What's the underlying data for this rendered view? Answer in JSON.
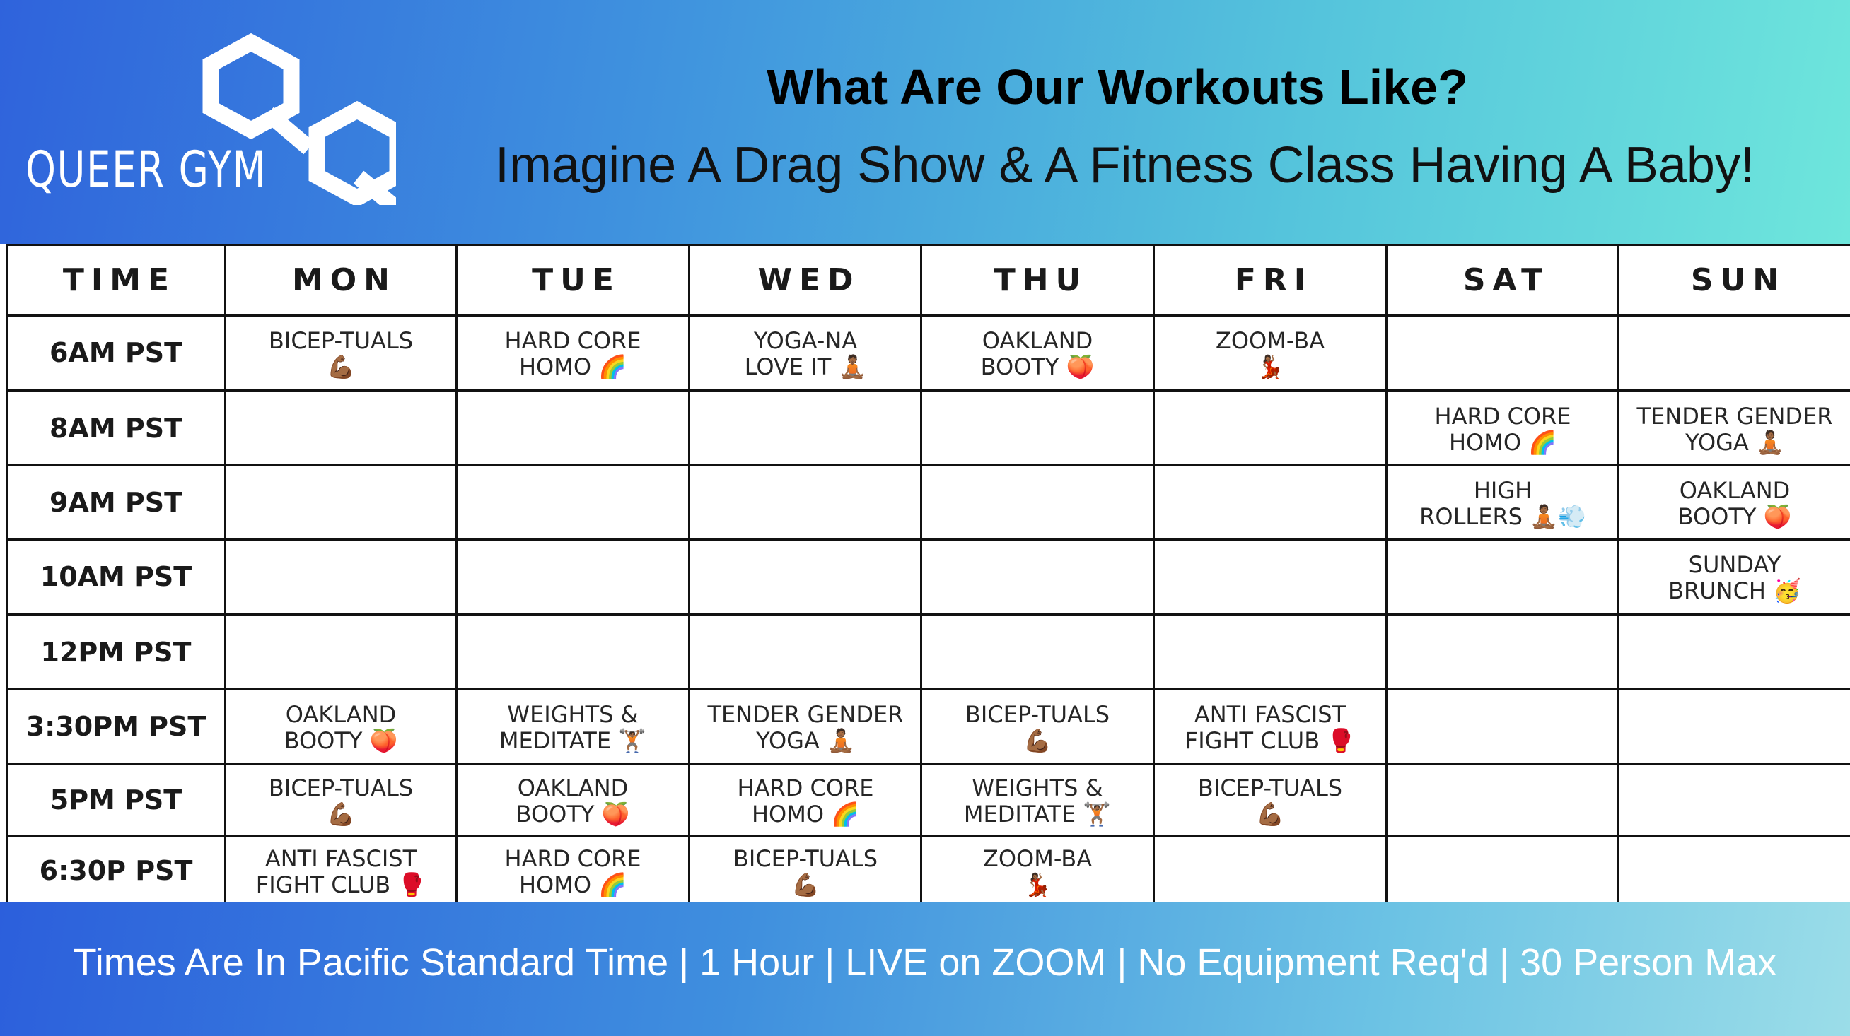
{
  "header": {
    "brand": "QUEER GYM",
    "logo_icon": "qq-hexagon-logo-icon",
    "title": "What Are Our Workouts Like?",
    "subtitle": "Imagine A Drag Show & A Fitness Class Having A Baby!"
  },
  "schedule": {
    "time_header": "TIME",
    "days": [
      "MON",
      "TUE",
      "WED",
      "THU",
      "FRI",
      "SAT",
      "SUN"
    ],
    "times": [
      "6AM PST",
      "8AM PST",
      "9AM PST",
      "10AM PST",
      "12PM PST",
      "3:30PM PST",
      "5PM PST",
      "6:30P PST"
    ],
    "rows": [
      [
        "BICEP-TUALS\n💪🏾",
        "HARD CORE\nHOMO 🌈",
        "YOGA-NA\nLOVE IT 🧘🏾",
        "OAKLAND\nBOOTY 🍑",
        "ZOOM-BA\n💃🏾",
        "",
        ""
      ],
      [
        "",
        "",
        "",
        "",
        "",
        "HARD CORE\nHOMO 🌈",
        "TENDER GENDER\nYOGA 🧘🏾"
      ],
      [
        "",
        "",
        "",
        "",
        "",
        "HIGH\nROLLERS 🧘🏾💨",
        "OAKLAND\nBOOTY 🍑"
      ],
      [
        "",
        "",
        "",
        "",
        "",
        "",
        "SUNDAY\nBRUNCH 🥳"
      ],
      [
        "",
        "",
        "",
        "",
        "",
        "",
        ""
      ],
      [
        "OAKLAND\nBOOTY 🍑",
        "WEIGHTS &\nMEDITATE 🏋🏾",
        "TENDER GENDER\nYOGA 🧘🏾",
        "BICEP-TUALS\n💪🏾",
        "ANTI FASCIST\nFIGHT CLUB 🥊",
        "",
        ""
      ],
      [
        "BICEP-TUALS\n💪🏾",
        "OAKLAND\nBOOTY 🍑",
        "HARD CORE\nHOMO 🌈",
        "WEIGHTS &\nMEDITATE 🏋🏾",
        "BICEP-TUALS\n💪🏾",
        "",
        ""
      ],
      [
        "ANTI FASCIST\nFIGHT CLUB 🥊",
        "HARD CORE\nHOMO 🌈",
        "BICEP-TUALS\n💪🏾",
        "ZOOM-BA\n💃🏾",
        "",
        "",
        ""
      ]
    ]
  },
  "footer": {
    "note": "Times Are In Pacific Standard Time | 1 Hour | LIVE on ZOOM | No Equipment Req'd | 30 Person Max"
  }
}
